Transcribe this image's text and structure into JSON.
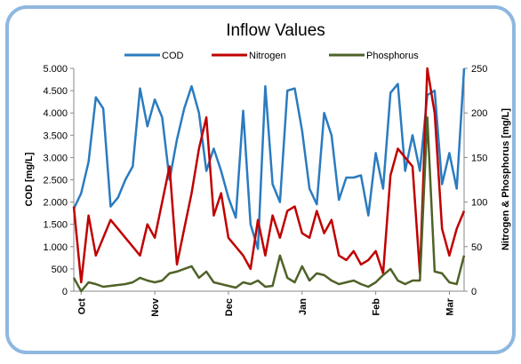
{
  "chart_data": {
    "type": "line",
    "title": "Inflow Values",
    "y_label": "COD [mg/L]",
    "y2_label": "Nitrogen & Phosphorus [mg/L]",
    "categories": [
      null,
      "Oct",
      null,
      null,
      null,
      null,
      null,
      null,
      null,
      null,
      null,
      "Nov",
      null,
      null,
      null,
      null,
      null,
      null,
      null,
      null,
      null,
      "Dec",
      null,
      null,
      null,
      null,
      null,
      null,
      null,
      null,
      null,
      "Jan",
      null,
      null,
      null,
      null,
      null,
      null,
      null,
      null,
      null,
      "Feb",
      null,
      null,
      null,
      null,
      null,
      null,
      null,
      null,
      null,
      "Mar",
      null,
      null
    ],
    "series": [
      {
        "name": "COD",
        "color": "#2b7bc0",
        "axis": "y",
        "values": [
          1850,
          2200,
          2900,
          4350,
          4100,
          1900,
          2100,
          2500,
          2800,
          4550,
          3700,
          4300,
          3900,
          2500,
          3400,
          4100,
          4600,
          4000,
          2700,
          3200,
          2700,
          2100,
          1650,
          4050,
          1500,
          950,
          4600,
          2400,
          2000,
          4500,
          4550,
          3600,
          2300,
          1950,
          4000,
          3500,
          2050,
          2550,
          2550,
          2600,
          1700,
          3100,
          2300,
          4450,
          4650,
          2700,
          3500,
          2700,
          4400,
          4500,
          2400,
          3100,
          2300,
          5000
        ]
      },
      {
        "name": "Nitrogen",
        "color": "#c00000",
        "axis": "y2",
        "values": [
          95,
          10,
          85,
          40,
          60,
          80,
          70,
          60,
          50,
          40,
          75,
          60,
          100,
          140,
          30,
          70,
          110,
          160,
          195,
          85,
          110,
          60,
          50,
          40,
          25,
          80,
          40,
          85,
          60,
          90,
          95,
          65,
          60,
          90,
          65,
          80,
          40,
          35,
          45,
          30,
          35,
          45,
          20,
          130,
          160,
          150,
          140,
          20,
          250,
          200,
          70,
          40,
          70,
          90
        ]
      },
      {
        "name": "Phosphorus",
        "color": "#4f6228",
        "axis": "y2",
        "values": [
          15,
          0,
          10,
          8,
          5,
          6,
          7,
          8,
          10,
          15,
          12,
          10,
          12,
          20,
          22,
          25,
          28,
          15,
          22,
          10,
          8,
          6,
          4,
          10,
          8,
          12,
          5,
          6,
          40,
          15,
          10,
          28,
          12,
          20,
          18,
          12,
          8,
          10,
          12,
          8,
          5,
          10,
          18,
          25,
          12,
          8,
          12,
          12,
          195,
          22,
          20,
          10,
          8,
          40
        ]
      }
    ],
    "ylim": [
      0,
      5000
    ],
    "yticks": [
      0,
      500,
      {
        "value": 1000,
        "label": "1.000"
      },
      {
        "value": 1500,
        "label": "1.500"
      },
      {
        "value": 2000,
        "label": "2.000"
      },
      {
        "value": 2500,
        "label": "2.500"
      },
      {
        "value": 3000,
        "label": "3.000"
      },
      {
        "value": 3500,
        "label": "3.500"
      },
      {
        "value": 4000,
        "label": "4.000"
      },
      {
        "value": 4500,
        "label": "4.500"
      },
      {
        "value": 5000,
        "label": "5.000"
      }
    ],
    "y2lim": [
      0,
      250
    ],
    "y2ticks": [
      0,
      50,
      100,
      150,
      200,
      250
    ],
    "legend": "top"
  }
}
